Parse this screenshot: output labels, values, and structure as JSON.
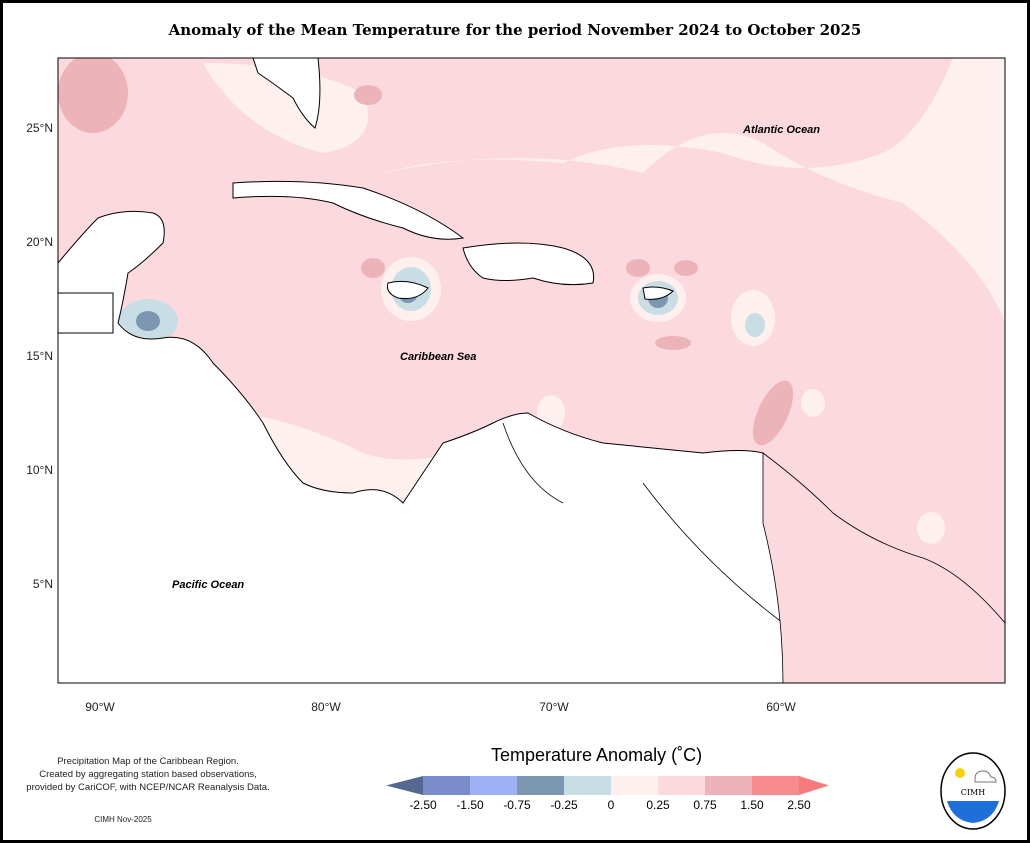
{
  "title": "Anomaly of the Mean Temperature for the period November 2024 to October 2025",
  "map": {
    "lat_labels": [
      "25°N",
      "20°N",
      "15°N",
      "10°N",
      "5°N"
    ],
    "lon_labels": [
      "90°W",
      "80°W",
      "70°W",
      "60°W"
    ],
    "ocean_labels": {
      "atlantic": "Atlantic Ocean",
      "caribbean": "Caribbean Sea",
      "pacific": "Pacific Ocean"
    }
  },
  "legend": {
    "title": "Temperature Anomaly (˚C)",
    "ticks": [
      "-2.50",
      "-1.50",
      "-0.75",
      "-0.25",
      "0",
      "0.25",
      "0.75",
      "1.50",
      "2.50"
    ],
    "colors": [
      "#56688f",
      "#7b8ccb",
      "#9fb1f5",
      "#7c98b0",
      "#c9dde5",
      "#fff0f0",
      "#fbd9de",
      "#ecb4b8",
      "#f98a8e",
      "#f77a7e"
    ]
  },
  "notes": {
    "line1": "Precipitation Map of the Caribbean Region.",
    "line2": "Created by aggregating station based observations,",
    "line3": "provided by CariCOF, with NCEP/NCAR Reanalysis Data.",
    "credit": "CIMH Nov-2025"
  },
  "logo": {
    "text": "CIMH"
  }
}
